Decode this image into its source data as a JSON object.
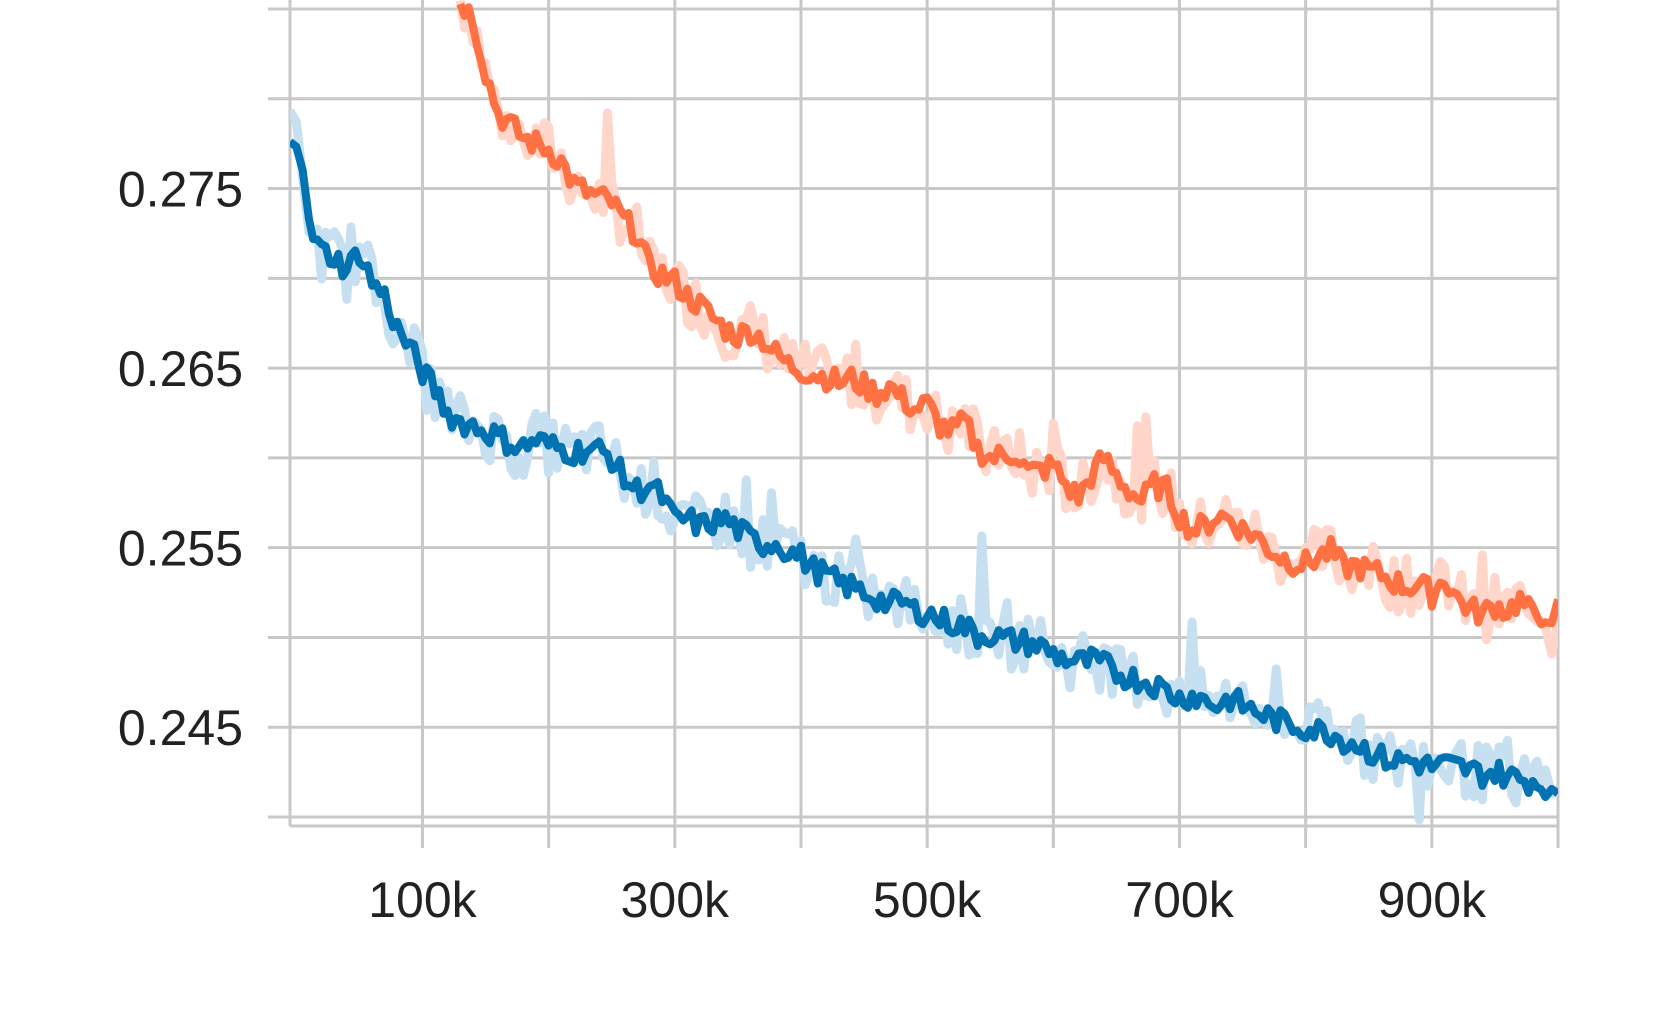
{
  "chart_data": {
    "type": "line",
    "title": "",
    "xlabel": "",
    "ylabel": "",
    "xlim": [
      -5000,
      1000000
    ],
    "ylim": [
      0.2395,
      0.2855
    ],
    "x_ticks": [
      100000,
      300000,
      500000,
      700000,
      900000
    ],
    "x_tick_labels": [
      "100k",
      "300k",
      "500k",
      "700k",
      "900k"
    ],
    "y_ticks": [
      0.245,
      0.255,
      0.265,
      0.275
    ],
    "y_tick_labels": [
      "0.245",
      "0.255",
      "0.265",
      "0.275"
    ],
    "grid": true,
    "legend": "none",
    "series": [
      {
        "color": "#ff7043",
        "raw_color": "#ffd6c9",
        "x": [
          130000,
          140000,
          150000,
          160000,
          170000,
          180000,
          190000,
          200000,
          210000,
          220000,
          230000,
          240000,
          250000,
          260000,
          270000,
          280000,
          290000,
          300000,
          310000,
          320000,
          330000,
          340000,
          350000,
          360000,
          370000,
          380000,
          390000,
          400000,
          410000,
          420000,
          430000,
          440000,
          450000,
          460000,
          470000,
          480000,
          490000,
          500000,
          510000,
          520000,
          530000,
          540000,
          550000,
          560000,
          570000,
          580000,
          590000,
          600000,
          610000,
          620000,
          630000,
          640000,
          650000,
          660000,
          670000,
          680000,
          690000,
          700000,
          710000,
          720000,
          730000,
          740000,
          750000,
          760000,
          770000,
          780000,
          790000,
          800000,
          810000,
          820000,
          830000,
          840000,
          850000,
          860000,
          870000,
          880000,
          890000,
          900000,
          910000,
          920000,
          930000,
          940000,
          950000,
          960000,
          970000,
          980000,
          990000,
          995000,
          1000000
        ],
        "values": [
          0.2855,
          0.2845,
          0.2815,
          0.2792,
          0.2785,
          0.2778,
          0.2775,
          0.2772,
          0.2765,
          0.2752,
          0.2748,
          0.2745,
          0.2742,
          0.2732,
          0.2725,
          0.2705,
          0.2702,
          0.2698,
          0.269,
          0.2685,
          0.2678,
          0.2672,
          0.2668,
          0.2671,
          0.2666,
          0.2658,
          0.2652,
          0.2649,
          0.2647,
          0.2645,
          0.2642,
          0.2644,
          0.264,
          0.2636,
          0.264,
          0.2633,
          0.2627,
          0.263,
          0.2618,
          0.2615,
          0.262,
          0.2605,
          0.26,
          0.2601,
          0.2603,
          0.2592,
          0.2593,
          0.2596,
          0.2585,
          0.2578,
          0.259,
          0.26,
          0.259,
          0.2582,
          0.2576,
          0.2585,
          0.2582,
          0.2568,
          0.256,
          0.2562,
          0.2568,
          0.2566,
          0.256,
          0.2557,
          0.255,
          0.2545,
          0.2542,
          0.2541,
          0.2545,
          0.2548,
          0.2539,
          0.254,
          0.2537,
          0.2535,
          0.2531,
          0.2528,
          0.253,
          0.2524,
          0.2533,
          0.2522,
          0.2516,
          0.2513,
          0.2518,
          0.2515,
          0.2521,
          0.2512,
          0.2514,
          0.2502,
          0.2516
        ]
      },
      {
        "color": "#0173b2",
        "raw_color": "#c7e0f1",
        "x": [
          -5000,
          0,
          5000,
          10000,
          20000,
          30000,
          40000,
          50000,
          60000,
          70000,
          80000,
          90000,
          100000,
          110000,
          120000,
          130000,
          140000,
          150000,
          160000,
          170000,
          180000,
          190000,
          200000,
          210000,
          220000,
          230000,
          240000,
          250000,
          260000,
          270000,
          280000,
          290000,
          300000,
          310000,
          320000,
          330000,
          340000,
          350000,
          360000,
          370000,
          380000,
          390000,
          400000,
          410000,
          420000,
          430000,
          440000,
          450000,
          460000,
          470000,
          480000,
          490000,
          500000,
          510000,
          520000,
          530000,
          540000,
          550000,
          560000,
          570000,
          580000,
          590000,
          600000,
          610000,
          620000,
          630000,
          640000,
          650000,
          660000,
          670000,
          680000,
          690000,
          700000,
          710000,
          720000,
          730000,
          740000,
          750000,
          760000,
          770000,
          780000,
          790000,
          800000,
          810000,
          820000,
          830000,
          840000,
          850000,
          860000,
          870000,
          880000,
          890000,
          900000,
          910000,
          920000,
          930000,
          940000,
          950000,
          960000,
          970000,
          980000,
          990000,
          995000,
          1000000
        ],
        "values": [
          0.2783,
          0.2778,
          0.2765,
          0.2728,
          0.2715,
          0.2712,
          0.2705,
          0.2715,
          0.2698,
          0.269,
          0.2672,
          0.2661,
          0.2648,
          0.2638,
          0.2625,
          0.262,
          0.2618,
          0.2615,
          0.2612,
          0.2608,
          0.2606,
          0.261,
          0.2607,
          0.2605,
          0.2603,
          0.2605,
          0.2604,
          0.26,
          0.2588,
          0.2582,
          0.2585,
          0.2578,
          0.2565,
          0.2566,
          0.2562,
          0.2564,
          0.2566,
          0.256,
          0.2555,
          0.2552,
          0.2553,
          0.2548,
          0.2545,
          0.2538,
          0.2535,
          0.253,
          0.2528,
          0.2525,
          0.2522,
          0.2518,
          0.252,
          0.2515,
          0.2514,
          0.251,
          0.2508,
          0.2506,
          0.2501,
          0.2502,
          0.2499,
          0.2498,
          0.2497,
          0.2495,
          0.2491,
          0.2488,
          0.2486,
          0.2487,
          0.2485,
          0.248,
          0.2478,
          0.2476,
          0.2474,
          0.247,
          0.2466,
          0.2468,
          0.2465,
          0.2462,
          0.2466,
          0.2462,
          0.2459,
          0.2456,
          0.2453,
          0.2451,
          0.245,
          0.2448,
          0.2447,
          0.2443,
          0.2441,
          0.2437,
          0.2433,
          0.2431,
          0.2432,
          0.243,
          0.2428,
          0.2429,
          0.2428,
          0.2426,
          0.2424,
          0.2425,
          0.2423,
          0.2421,
          0.242,
          0.2418,
          0.2412,
          0.2407
        ]
      }
    ]
  }
}
